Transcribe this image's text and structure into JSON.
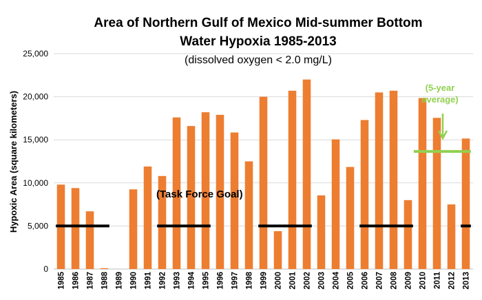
{
  "chart_data": {
    "type": "bar",
    "title_line1": "Area of Northern Gulf of Mexico Mid-summer Bottom",
    "title_line2": "Water Hypoxia 1985-2013",
    "subtitle": "(dissolved oxygen < 2.0 mg/L)",
    "ylabel": "Hypoxic Area (square kilometers)",
    "xlabel": "",
    "ylim": [
      0,
      25000
    ],
    "yticks": [
      "0",
      "5,000",
      "10,000",
      "15,000",
      "20,000",
      "25,000"
    ],
    "ytick_values": [
      0,
      5000,
      10000,
      15000,
      20000,
      25000
    ],
    "categories": [
      "1985",
      "1986",
      "1987",
      "1988",
      "1989",
      "1990",
      "1991",
      "1992",
      "1993",
      "1994",
      "1995",
      "1996",
      "1997",
      "1998",
      "1999",
      "2000",
      "2001",
      "2002",
      "2003",
      "2004",
      "2005",
      "2006",
      "2007",
      "2008",
      "2009",
      "2010",
      "2011",
      "2012",
      "2013"
    ],
    "values": [
      9800,
      9400,
      6700,
      100,
      0,
      9250,
      11900,
      10800,
      17600,
      16600,
      18200,
      17900,
      15850,
      12500,
      20000,
      4400,
      20700,
      22000,
      8550,
      15050,
      11850,
      17300,
      20500,
      20700,
      8000,
      19850,
      17550,
      7500,
      15150
    ],
    "bar_color": "#ED7D31",
    "task_force_goal": {
      "label": "(Task Force Goal)",
      "value": 5000,
      "color": "#000000"
    },
    "five_year_average": {
      "label_line1": "(5-year",
      "label_line2": "average)",
      "value": 13650,
      "color": "#92D050"
    },
    "grid": true,
    "legend": "none"
  }
}
